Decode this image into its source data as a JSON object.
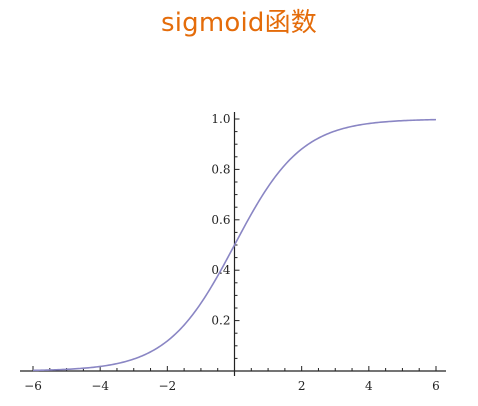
{
  "page_title": "sigmoid函数",
  "colors": {
    "title": "#e46c0a",
    "curve": "#8a86c4",
    "axes": "#222222"
  },
  "chart_data": {
    "type": "line",
    "title": "sigmoid函数",
    "xlabel": "",
    "ylabel": "",
    "xlim": [
      -6,
      6
    ],
    "ylim": [
      0,
      1
    ],
    "x_ticks": [
      -6,
      -4,
      -2,
      2,
      4,
      6
    ],
    "x_tick_labels": [
      "-6",
      "-4",
      "-2",
      "2",
      "4",
      "6"
    ],
    "y_ticks": [
      0.2,
      0.4,
      0.6,
      0.8,
      1.0
    ],
    "y_tick_labels": [
      "0.2",
      "0.4",
      "0.6",
      "0.8",
      "1.0"
    ],
    "series": [
      {
        "x": [
          -6,
          -5,
          -4,
          -3,
          -2,
          -1,
          0,
          1,
          2,
          3,
          4,
          5,
          6
        ],
        "y": [
          0.0025,
          0.0067,
          0.018,
          0.047,
          0.119,
          0.269,
          0.5,
          0.731,
          0.881,
          0.953,
          0.982,
          0.9933,
          0.9975
        ]
      }
    ],
    "grid": false,
    "legend": "none"
  }
}
